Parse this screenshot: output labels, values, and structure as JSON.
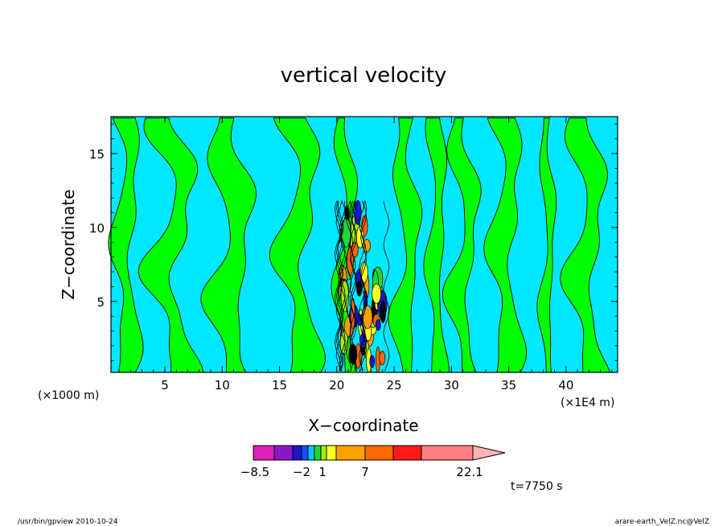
{
  "chart_data": {
    "type": "heatmap",
    "title": "vertical velocity",
    "xlabel": "X−coordinate",
    "ylabel": "Z−coordinate",
    "x_unit_label_left": "(×1000 m)",
    "x_unit_label_right": "(×1E4 m)",
    "xlim": [
      0.3,
      44.5
    ],
    "ylim": [
      0.2,
      17.5
    ],
    "x_ticks": [
      5,
      10,
      15,
      20,
      25,
      30,
      35,
      40
    ],
    "y_ticks": [
      5,
      10,
      15
    ],
    "colorbar": {
      "tick_labels": [
        "−8.5",
        "−2",
        "1",
        "7",
        "22.1"
      ],
      "colors": [
        "#e020b8",
        "#8a18c8",
        "#1818c8",
        "#1450ff",
        "#00c8ff",
        "#20d830",
        "#a0f000",
        "#ffff20",
        "#ffa000",
        "#ff6800",
        "#ff1818",
        "#ff8080",
        "#ffb4b4"
      ],
      "extend": "max"
    },
    "time_label": "t=7750 s",
    "field_colors": {
      "background": "#00e8ff",
      "positive": "#00ff00",
      "contour": "#000000"
    }
  },
  "footer": {
    "left": "/usr/bin/gpview   2010-10-24",
    "right": "arare-earth_VelZ.nc@VelZ"
  }
}
